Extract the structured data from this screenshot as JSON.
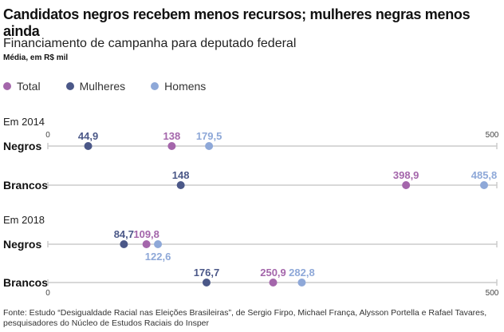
{
  "title": "Candidatos negros recebem menos recursos; mulheres negras menos ainda",
  "subtitle": "Financiamento de campanha para deputado federal",
  "unit": "Média, em R$ mil",
  "source": "Fonte: Estudo “Desigualdade Racial nas Eleições Brasileiras”, de Sergio Firpo, Michael França, Alysson Portella e Rafael Tavares, pesquisadores do Núcleo de Estudos Raciais do Insper",
  "colors": {
    "Total": "#a466ab",
    "Mulheres": "#4b5888",
    "Homens": "#8ea8d8"
  },
  "chart_data": {
    "type": "scatter",
    "title": "Candidatos negros recebem menos recursos; mulheres negras menos ainda",
    "xlim": [
      0,
      500
    ],
    "ticks": [
      "0",
      "500"
    ],
    "legend": [
      "Total",
      "Mulheres",
      "Homens"
    ],
    "legend_position": "top-left",
    "groups": [
      {
        "label": "Em 2014",
        "rows": [
          {
            "label": "Negros",
            "points": [
              {
                "series": "Mulheres",
                "value": 44.9,
                "text": "44,9"
              },
              {
                "series": "Total",
                "value": 138,
                "text": "138"
              },
              {
                "series": "Homens",
                "value": 179.5,
                "text": "179,5"
              }
            ]
          },
          {
            "label": "Brancos",
            "points": [
              {
                "series": "Mulheres",
                "value": 148,
                "text": "148"
              },
              {
                "series": "Total",
                "value": 398.9,
                "text": "398,9"
              },
              {
                "series": "Homens",
                "value": 485.8,
                "text": "485,8"
              }
            ]
          }
        ]
      },
      {
        "label": "Em 2018",
        "rows": [
          {
            "label": "Negros",
            "points": [
              {
                "series": "Mulheres",
                "value": 84.7,
                "text": "84,7"
              },
              {
                "series": "Total",
                "value": 109.8,
                "text": "109,8"
              },
              {
                "series": "Homens",
                "value": 122.6,
                "text": "122,6"
              }
            ]
          },
          {
            "label": "Brancos",
            "points": [
              {
                "series": "Mulheres",
                "value": 176.7,
                "text": "176,7"
              },
              {
                "series": "Total",
                "value": 250.9,
                "text": "250,9"
              },
              {
                "series": "Homens",
                "value": 282.8,
                "text": "282,8"
              }
            ]
          }
        ]
      }
    ]
  }
}
